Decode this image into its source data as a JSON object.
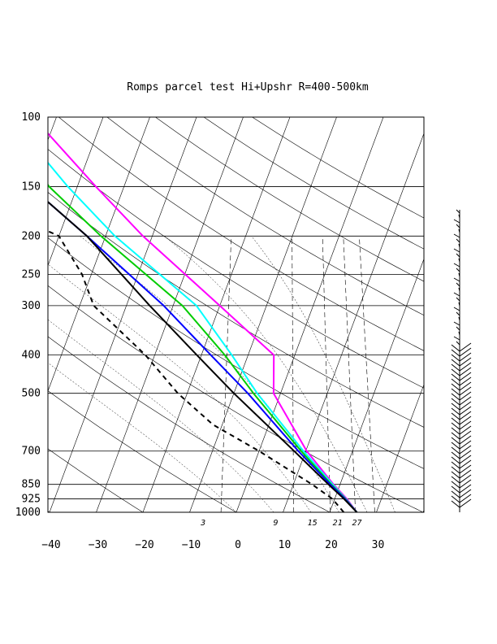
{
  "chart_data": {
    "type": "line",
    "title": "Romps parcel test Hi+Upshr R=400-500km",
    "diagram": "skew-T log-p",
    "y_axis": {
      "quantity": "pressure (hPa)",
      "scale": "log",
      "reversed": true,
      "ticks": [
        100,
        150,
        200,
        250,
        300,
        400,
        500,
        700,
        850,
        925,
        1000
      ],
      "tick_labels": [
        "100",
        "150",
        "200",
        "250",
        "300",
        "400",
        "500",
        "700",
        "850",
        "925",
        "1000"
      ]
    },
    "x_axis": {
      "quantity": "temperature",
      "skewed": true,
      "ticks": [
        -40,
        -30,
        -20,
        -10,
        0,
        10,
        20,
        30
      ],
      "tick_labels": [
        "−40",
        "−30",
        "−20",
        "−10",
        "0",
        "10",
        "20",
        "30"
      ]
    },
    "mixing_ratio_labels": [
      "3",
      "9",
      "15",
      "21",
      "27"
    ],
    "grid": true,
    "wind_barbs": true,
    "series": [
      {
        "color": "#ff00ff",
        "style": "solid",
        "points": [
          [
            1000,
            25.8
          ],
          [
            925,
            22.6
          ],
          [
            850,
            18.6
          ],
          [
            700,
            10.2
          ],
          [
            500,
            -1.5
          ],
          [
            400,
            -4.5
          ],
          [
            300,
            -20
          ],
          [
            200,
            -42
          ],
          [
            150,
            -56
          ],
          [
            100,
            -75
          ]
        ]
      },
      {
        "color": "#00ffff",
        "style": "solid",
        "points": [
          [
            1000,
            25.8
          ],
          [
            925,
            22.4
          ],
          [
            850,
            18.4
          ],
          [
            700,
            9.5
          ],
          [
            500,
            -5
          ],
          [
            400,
            -13.5
          ],
          [
            300,
            -25
          ],
          [
            200,
            -48
          ],
          [
            150,
            -62
          ],
          [
            100,
            -80
          ]
        ]
      },
      {
        "color": "#00cc00",
        "style": "solid",
        "points": [
          [
            1000,
            25.8
          ],
          [
            925,
            22.3
          ],
          [
            850,
            18.1
          ],
          [
            700,
            9
          ],
          [
            500,
            -5.8
          ],
          [
            400,
            -15
          ],
          [
            300,
            -28
          ],
          [
            200,
            -51
          ],
          [
            150,
            -66
          ],
          [
            100,
            -82
          ]
        ]
      },
      {
        "color": "#0000ff",
        "style": "solid",
        "points": [
          [
            1000,
            25.8
          ],
          [
            925,
            22.2
          ],
          [
            850,
            17.9
          ],
          [
            700,
            8.4
          ],
          [
            500,
            -7
          ],
          [
            400,
            -18
          ],
          [
            300,
            -32
          ],
          [
            200,
            -54
          ],
          [
            150,
            -70
          ],
          [
            100,
            -84
          ]
        ]
      },
      {
        "color": "#000000",
        "style": "solid",
        "points": [
          [
            1000,
            25.8
          ],
          [
            925,
            22
          ],
          [
            850,
            17.5
          ],
          [
            700,
            7.5
          ],
          [
            500,
            -10
          ],
          [
            400,
            -21
          ],
          [
            300,
            -35
          ],
          [
            200,
            -54
          ],
          [
            150,
            -70
          ],
          [
            100,
            -73
          ]
        ]
      },
      {
        "color": "#000000",
        "style": "dashed",
        "points": [
          [
            1000,
            23
          ],
          [
            925,
            19.5
          ],
          [
            850,
            14
          ],
          [
            700,
            0
          ],
          [
            600,
            -12
          ],
          [
            500,
            -22
          ],
          [
            400,
            -32
          ],
          [
            300,
            -47
          ],
          [
            250,
            -52
          ],
          [
            200,
            -60
          ],
          [
            180,
            -70
          ],
          [
            170,
            -78
          ],
          [
            160,
            -72
          ]
        ]
      }
    ]
  }
}
